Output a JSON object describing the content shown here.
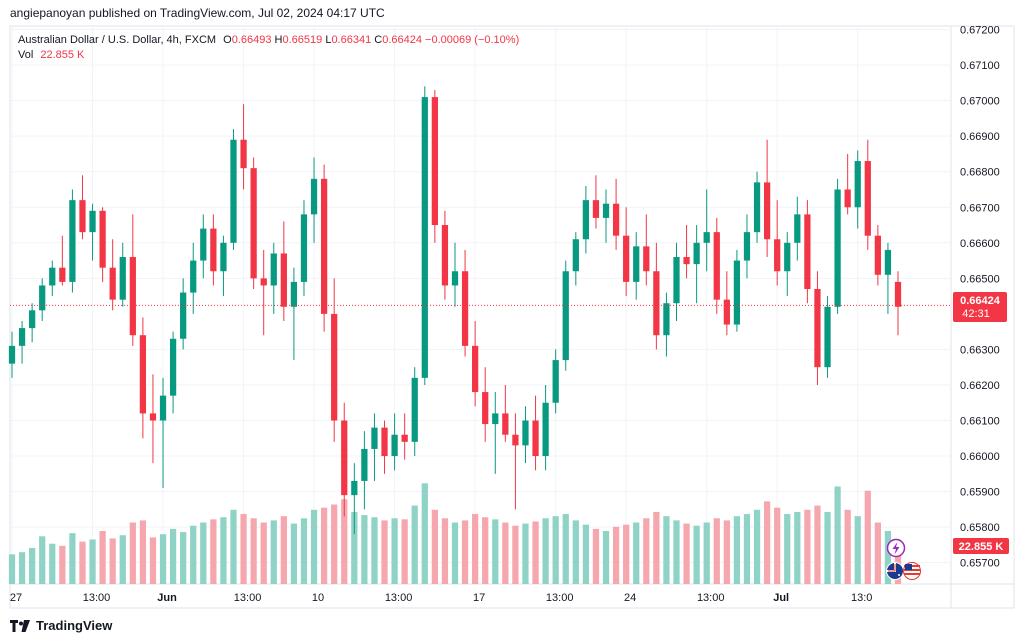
{
  "publisher": "angiepanoyan published on TradingView.com, Jul 02, 2024 04:17 UTC",
  "legend": {
    "symbol": "Australian Dollar / U.S. Dollar, 4h, FXCM",
    "o_label": "O",
    "o_value": "0.66493",
    "h_label": "H",
    "h_value": "0.66519",
    "l_label": "L",
    "l_value": "0.66341",
    "c_label": "C",
    "c_value": "0.66424",
    "change": "−0.00069 (−0.10%)",
    "vol_label": "Vol",
    "vol_value": "22.855 K"
  },
  "price_badge": {
    "price": "0.66424",
    "countdown": "42:31"
  },
  "volume_badge": "22.855 K",
  "footer": {
    "brand": "TradingView"
  },
  "colors": {
    "up": "#089981",
    "down": "#f23645",
    "up_vol": "#8fd3c7",
    "down_vol": "#f6a7ad",
    "grid": "#f0f3fa",
    "current_line": "#f23645"
  },
  "icons": [
    "lightning-icon",
    "australia-flag-icon",
    "usa-flag-icon",
    "tradingview-logo-icon"
  ],
  "chart_data": {
    "type": "candlestick",
    "interval": "4h",
    "ylim": [
      0.6564,
      0.6721
    ],
    "y_ticks": [
      "0.67200",
      "0.67100",
      "0.67000",
      "0.66900",
      "0.66800",
      "0.66700",
      "0.66600",
      "0.66500",
      "0.66300",
      "0.66200",
      "0.66100",
      "0.66000",
      "0.65900",
      "0.65800",
      "0.65700"
    ],
    "x_ticks": [
      "27",
      "13:00",
      "Jun",
      "13:00",
      "10",
      "13:00",
      "17",
      "13:00",
      "24",
      "13:00",
      "Jul",
      "13:0"
    ],
    "grid": true,
    "current_price": 0.66424,
    "volume_ylim": [
      0,
      100
    ],
    "candles": [
      {
        "o": 0.6626,
        "h": 0.6635,
        "l": 0.6622,
        "c": 0.6631,
        "v": 28
      },
      {
        "o": 0.6631,
        "h": 0.6638,
        "l": 0.6626,
        "c": 0.6636,
        "v": 30
      },
      {
        "o": 0.6636,
        "h": 0.6643,
        "l": 0.6632,
        "c": 0.6641,
        "v": 34
      },
      {
        "o": 0.6641,
        "h": 0.665,
        "l": 0.6638,
        "c": 0.6648,
        "v": 45
      },
      {
        "o": 0.6648,
        "h": 0.6655,
        "l": 0.6645,
        "c": 0.6653,
        "v": 38
      },
      {
        "o": 0.6653,
        "h": 0.6662,
        "l": 0.6648,
        "c": 0.6649,
        "v": 36
      },
      {
        "o": 0.6649,
        "h": 0.6675,
        "l": 0.6646,
        "c": 0.6672,
        "v": 48
      },
      {
        "o": 0.6672,
        "h": 0.6679,
        "l": 0.6661,
        "c": 0.6663,
        "v": 40
      },
      {
        "o": 0.6663,
        "h": 0.6671,
        "l": 0.6655,
        "c": 0.6669,
        "v": 42
      },
      {
        "o": 0.6669,
        "h": 0.667,
        "l": 0.6649,
        "c": 0.6653,
        "v": 50
      },
      {
        "o": 0.6653,
        "h": 0.6661,
        "l": 0.6641,
        "c": 0.6644,
        "v": 43
      },
      {
        "o": 0.6644,
        "h": 0.666,
        "l": 0.6642,
        "c": 0.6656,
        "v": 46
      },
      {
        "o": 0.6656,
        "h": 0.6668,
        "l": 0.6631,
        "c": 0.6634,
        "v": 58
      },
      {
        "o": 0.6634,
        "h": 0.6639,
        "l": 0.6605,
        "c": 0.6612,
        "v": 60
      },
      {
        "o": 0.6612,
        "h": 0.6623,
        "l": 0.6598,
        "c": 0.661,
        "v": 44
      },
      {
        "o": 0.661,
        "h": 0.6622,
        "l": 0.6591,
        "c": 0.6617,
        "v": 47
      },
      {
        "o": 0.6617,
        "h": 0.6635,
        "l": 0.6612,
        "c": 0.6633,
        "v": 52
      },
      {
        "o": 0.6633,
        "h": 0.665,
        "l": 0.663,
        "c": 0.6646,
        "v": 49
      },
      {
        "o": 0.6646,
        "h": 0.666,
        "l": 0.664,
        "c": 0.6655,
        "v": 55
      },
      {
        "o": 0.6655,
        "h": 0.6668,
        "l": 0.665,
        "c": 0.6664,
        "v": 58
      },
      {
        "o": 0.6664,
        "h": 0.6668,
        "l": 0.6648,
        "c": 0.6652,
        "v": 61
      },
      {
        "o": 0.6652,
        "h": 0.6662,
        "l": 0.6645,
        "c": 0.666,
        "v": 63
      },
      {
        "o": 0.666,
        "h": 0.6692,
        "l": 0.6658,
        "c": 0.6689,
        "v": 70
      },
      {
        "o": 0.6689,
        "h": 0.6699,
        "l": 0.6675,
        "c": 0.6681,
        "v": 66
      },
      {
        "o": 0.6681,
        "h": 0.6684,
        "l": 0.6647,
        "c": 0.665,
        "v": 62
      },
      {
        "o": 0.665,
        "h": 0.6658,
        "l": 0.6634,
        "c": 0.6648,
        "v": 58
      },
      {
        "o": 0.6648,
        "h": 0.666,
        "l": 0.664,
        "c": 0.6657,
        "v": 60
      },
      {
        "o": 0.6657,
        "h": 0.6666,
        "l": 0.6638,
        "c": 0.6642,
        "v": 64
      },
      {
        "o": 0.6642,
        "h": 0.6653,
        "l": 0.6627,
        "c": 0.6649,
        "v": 57
      },
      {
        "o": 0.6649,
        "h": 0.6672,
        "l": 0.6645,
        "c": 0.6668,
        "v": 62
      },
      {
        "o": 0.6668,
        "h": 0.6684,
        "l": 0.666,
        "c": 0.6678,
        "v": 70
      },
      {
        "o": 0.6678,
        "h": 0.6682,
        "l": 0.6635,
        "c": 0.664,
        "v": 72
      },
      {
        "o": 0.664,
        "h": 0.665,
        "l": 0.6604,
        "c": 0.661,
        "v": 75
      },
      {
        "o": 0.661,
        "h": 0.6615,
        "l": 0.6583,
        "c": 0.6589,
        "v": 80
      },
      {
        "o": 0.6589,
        "h": 0.6598,
        "l": 0.6578,
        "c": 0.6593,
        "v": 68
      },
      {
        "o": 0.6593,
        "h": 0.6607,
        "l": 0.6585,
        "c": 0.6602,
        "v": 65
      },
      {
        "o": 0.6602,
        "h": 0.6612,
        "l": 0.6593,
        "c": 0.6608,
        "v": 63
      },
      {
        "o": 0.6608,
        "h": 0.661,
        "l": 0.6595,
        "c": 0.66,
        "v": 60
      },
      {
        "o": 0.66,
        "h": 0.6612,
        "l": 0.6596,
        "c": 0.6606,
        "v": 62
      },
      {
        "o": 0.6606,
        "h": 0.6612,
        "l": 0.6599,
        "c": 0.6604,
        "v": 61
      },
      {
        "o": 0.6604,
        "h": 0.6625,
        "l": 0.66,
        "c": 0.6622,
        "v": 74
      },
      {
        "o": 0.6622,
        "h": 0.6704,
        "l": 0.662,
        "c": 0.6701,
        "v": 95
      },
      {
        "o": 0.6701,
        "h": 0.6703,
        "l": 0.666,
        "c": 0.6665,
        "v": 70
      },
      {
        "o": 0.6665,
        "h": 0.6669,
        "l": 0.6644,
        "c": 0.6648,
        "v": 62
      },
      {
        "o": 0.6648,
        "h": 0.666,
        "l": 0.6642,
        "c": 0.6652,
        "v": 58
      },
      {
        "o": 0.6652,
        "h": 0.6658,
        "l": 0.6628,
        "c": 0.6631,
        "v": 60
      },
      {
        "o": 0.6631,
        "h": 0.6638,
        "l": 0.6614,
        "c": 0.6618,
        "v": 66
      },
      {
        "o": 0.6618,
        "h": 0.6625,
        "l": 0.6604,
        "c": 0.6609,
        "v": 63
      },
      {
        "o": 0.6609,
        "h": 0.6618,
        "l": 0.6595,
        "c": 0.6612,
        "v": 61
      },
      {
        "o": 0.6612,
        "h": 0.662,
        "l": 0.6604,
        "c": 0.6606,
        "v": 58
      },
      {
        "o": 0.6606,
        "h": 0.6612,
        "l": 0.6585,
        "c": 0.6603,
        "v": 55
      },
      {
        "o": 0.6603,
        "h": 0.6614,
        "l": 0.6598,
        "c": 0.661,
        "v": 57
      },
      {
        "o": 0.661,
        "h": 0.6617,
        "l": 0.6596,
        "c": 0.66,
        "v": 59
      },
      {
        "o": 0.66,
        "h": 0.662,
        "l": 0.6596,
        "c": 0.6615,
        "v": 62
      },
      {
        "o": 0.6615,
        "h": 0.663,
        "l": 0.6612,
        "c": 0.6627,
        "v": 64
      },
      {
        "o": 0.6627,
        "h": 0.6655,
        "l": 0.6624,
        "c": 0.6652,
        "v": 66
      },
      {
        "o": 0.6652,
        "h": 0.6663,
        "l": 0.6648,
        "c": 0.6661,
        "v": 60
      },
      {
        "o": 0.6661,
        "h": 0.6676,
        "l": 0.6657,
        "c": 0.6672,
        "v": 56
      },
      {
        "o": 0.6672,
        "h": 0.6679,
        "l": 0.6664,
        "c": 0.6667,
        "v": 52
      },
      {
        "o": 0.6667,
        "h": 0.6675,
        "l": 0.666,
        "c": 0.6671,
        "v": 50
      },
      {
        "o": 0.6671,
        "h": 0.6678,
        "l": 0.6658,
        "c": 0.6662,
        "v": 54
      },
      {
        "o": 0.6662,
        "h": 0.667,
        "l": 0.6645,
        "c": 0.6649,
        "v": 56
      },
      {
        "o": 0.6649,
        "h": 0.6663,
        "l": 0.6644,
        "c": 0.6659,
        "v": 58
      },
      {
        "o": 0.6659,
        "h": 0.6668,
        "l": 0.6648,
        "c": 0.6652,
        "v": 62
      },
      {
        "o": 0.6652,
        "h": 0.666,
        "l": 0.663,
        "c": 0.6634,
        "v": 68
      },
      {
        "o": 0.6634,
        "h": 0.6646,
        "l": 0.6628,
        "c": 0.6643,
        "v": 64
      },
      {
        "o": 0.6643,
        "h": 0.666,
        "l": 0.6638,
        "c": 0.6656,
        "v": 60
      },
      {
        "o": 0.6656,
        "h": 0.6665,
        "l": 0.665,
        "c": 0.6654,
        "v": 57
      },
      {
        "o": 0.6654,
        "h": 0.6665,
        "l": 0.6643,
        "c": 0.666,
        "v": 55
      },
      {
        "o": 0.666,
        "h": 0.6675,
        "l": 0.6652,
        "c": 0.6663,
        "v": 58
      },
      {
        "o": 0.6663,
        "h": 0.6667,
        "l": 0.664,
        "c": 0.6644,
        "v": 62
      },
      {
        "o": 0.6644,
        "h": 0.6652,
        "l": 0.6634,
        "c": 0.6637,
        "v": 60
      },
      {
        "o": 0.6637,
        "h": 0.6658,
        "l": 0.6635,
        "c": 0.6655,
        "v": 64
      },
      {
        "o": 0.6655,
        "h": 0.6668,
        "l": 0.665,
        "c": 0.6663,
        "v": 66
      },
      {
        "o": 0.6663,
        "h": 0.668,
        "l": 0.666,
        "c": 0.6677,
        "v": 70
      },
      {
        "o": 0.6677,
        "h": 0.6689,
        "l": 0.6656,
        "c": 0.6661,
        "v": 78
      },
      {
        "o": 0.6661,
        "h": 0.6672,
        "l": 0.6648,
        "c": 0.6652,
        "v": 72
      },
      {
        "o": 0.6652,
        "h": 0.6663,
        "l": 0.6645,
        "c": 0.666,
        "v": 66
      },
      {
        "o": 0.666,
        "h": 0.6673,
        "l": 0.6655,
        "c": 0.6668,
        "v": 68
      },
      {
        "o": 0.6668,
        "h": 0.6672,
        "l": 0.6643,
        "c": 0.6647,
        "v": 70
      },
      {
        "o": 0.6647,
        "h": 0.6652,
        "l": 0.662,
        "c": 0.6625,
        "v": 74
      },
      {
        "o": 0.6625,
        "h": 0.6645,
        "l": 0.6622,
        "c": 0.6642,
        "v": 68
      },
      {
        "o": 0.6642,
        "h": 0.6678,
        "l": 0.664,
        "c": 0.6675,
        "v": 92
      },
      {
        "o": 0.6675,
        "h": 0.6685,
        "l": 0.6668,
        "c": 0.667,
        "v": 70
      },
      {
        "o": 0.667,
        "h": 0.6686,
        "l": 0.6664,
        "c": 0.6683,
        "v": 64
      },
      {
        "o": 0.6683,
        "h": 0.6689,
        "l": 0.6658,
        "c": 0.6662,
        "v": 88
      },
      {
        "o": 0.6662,
        "h": 0.6665,
        "l": 0.6648,
        "c": 0.6651,
        "v": 58
      },
      {
        "o": 0.6651,
        "h": 0.666,
        "l": 0.664,
        "c": 0.6658,
        "v": 50
      },
      {
        "o": 0.6649,
        "h": 0.6652,
        "l": 0.6634,
        "c": 0.6642,
        "v": 35
      }
    ]
  }
}
